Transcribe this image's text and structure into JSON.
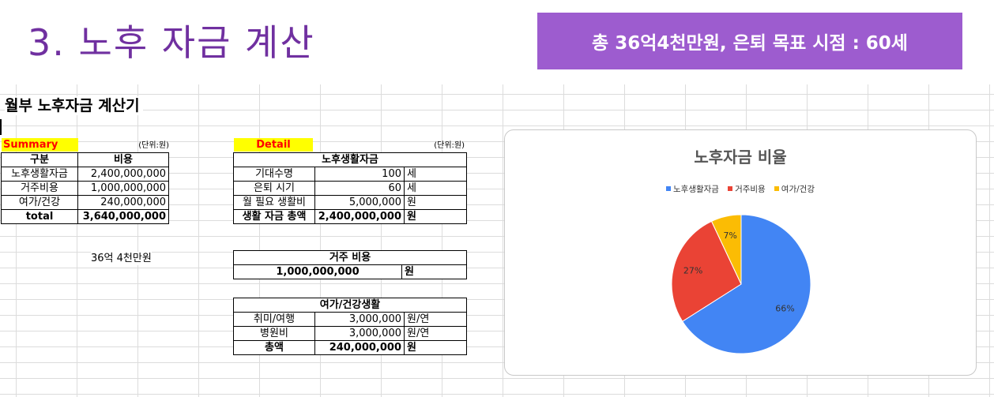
{
  "title": "3. 노후 자금 계산",
  "banner": "총 36억4천만원, 은퇴 목표 시점 : 60세",
  "sheet_title": "월부 노후자금 계산기",
  "summary": {
    "header": "Summary",
    "unit": "(단위:원)",
    "col_headers": [
      "구분",
      "비용"
    ],
    "rows": [
      {
        "label": "노후생활자금",
        "value": "2,400,000,000"
      },
      {
        "label": "거주비용",
        "value": "1,000,000,000"
      },
      {
        "label": "여가/건강",
        "value": "240,000,000"
      },
      {
        "label": "total",
        "value": "3,640,000,000"
      }
    ],
    "note": "36억 4천만원"
  },
  "detail": {
    "header": "Detail",
    "unit": "(단위:원)",
    "living": {
      "title": "노후생활자금",
      "rows": [
        {
          "label": "기대수명",
          "value": "100",
          "unit": "세"
        },
        {
          "label": "은퇴 시기",
          "value": "60",
          "unit": "세"
        },
        {
          "label": "월 필요 생활비",
          "value": "5,000,000",
          "unit": "원"
        },
        {
          "label": "생활 자금 총액",
          "value": "2,400,000,000",
          "unit": "원"
        }
      ]
    },
    "housing": {
      "title": "거주 비용",
      "value": "1,000,000,000",
      "unit": "원"
    },
    "leisure": {
      "title": "여가/건강생활",
      "rows": [
        {
          "label": "취미/여행",
          "value": "3,000,000",
          "unit": "원/연"
        },
        {
          "label": "병원비",
          "value": "3,000,000",
          "unit": "원/연"
        },
        {
          "label": "총액",
          "value": "240,000,000",
          "unit": "원"
        }
      ]
    }
  },
  "chart_data": {
    "type": "pie",
    "title": "노후자금 비율",
    "categories": [
      "노후생활자금",
      "거주비용",
      "여가/건강"
    ],
    "values": [
      66,
      27,
      7
    ],
    "labels": [
      "66%",
      "27%",
      "7%"
    ],
    "colors": [
      "#4285f4",
      "#ea4335",
      "#fbbc04"
    ],
    "legend": "top"
  }
}
